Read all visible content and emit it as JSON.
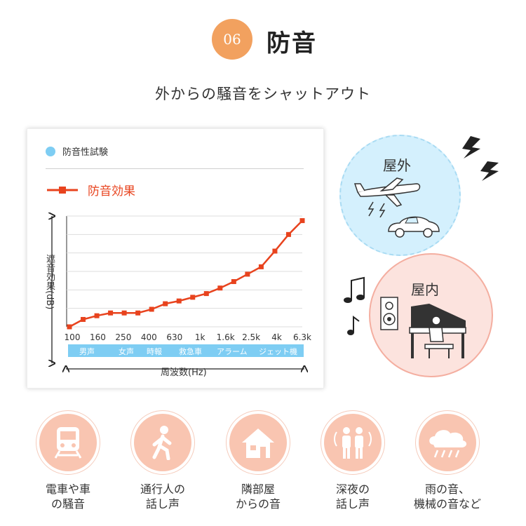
{
  "header": {
    "number": "06",
    "title": "防音"
  },
  "subtitle": "外からの騒音をシャットアウト",
  "colors": {
    "accent_orange": "#f2a15f",
    "series_red": "#e8431e",
    "band_blue": "#7ecdf3",
    "peach": "#f9c5b1"
  },
  "chart_data": {
    "type": "line",
    "title": "防音性試験",
    "xlabel": "周波数(Hz)",
    "ylabel": "遮音効果(dB)",
    "tick_labels": [
      "100",
      "160",
      "250",
      "400",
      "630",
      "1k",
      "1.6k",
      "2.5k",
      "4k",
      "6.3k"
    ],
    "series": [
      {
        "name": "防音効果",
        "values": [
          0,
          8,
          12,
          15,
          15,
          15,
          19,
          25,
          28,
          32,
          36,
          42,
          49,
          57,
          65,
          82,
          100,
          115
        ]
      }
    ],
    "ylim": [
      0,
      120
    ],
    "grid": true,
    "band_labels": [
      "男声",
      "女声",
      "時報",
      "救急車",
      "アラーム",
      "ジェット機"
    ]
  },
  "illustration": {
    "outdoor_label": "屋外",
    "indoor_label": "屋内"
  },
  "categories": [
    {
      "icon": "train-icon",
      "line1": "電車や車",
      "line2": "の騒音"
    },
    {
      "icon": "walking-person-icon",
      "line1": "通行人の",
      "line2": "話し声"
    },
    {
      "icon": "house-icon",
      "line1": "隣部屋",
      "line2": "からの音"
    },
    {
      "icon": "couple-talking-icon",
      "line1": "深夜の",
      "line2": "話し声"
    },
    {
      "icon": "rain-cloud-icon",
      "line1": "雨の音、",
      "line2": "機械の音など"
    }
  ]
}
